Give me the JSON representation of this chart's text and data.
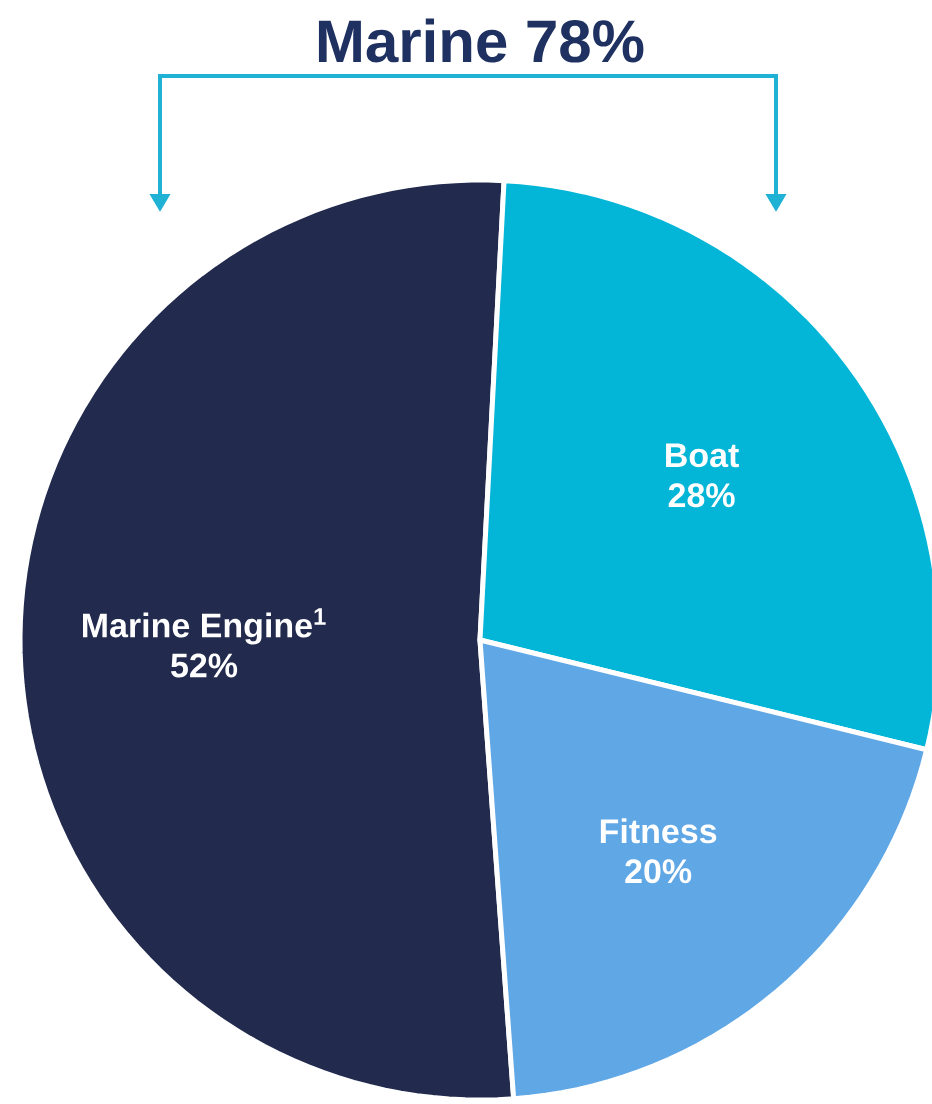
{
  "chart_data": {
    "type": "pie",
    "title": "Marine 78%",
    "categories": [
      "Marine Engine$^{1}$",
      "Boat",
      "Fitness"
    ],
    "values": [
      52,
      28,
      20
    ],
    "value_labels": [
      "52%",
      "28%",
      "20%"
    ],
    "colors": [
      "#222b4e",
      "#03b6d7",
      "#60a7e6"
    ]
  }
}
